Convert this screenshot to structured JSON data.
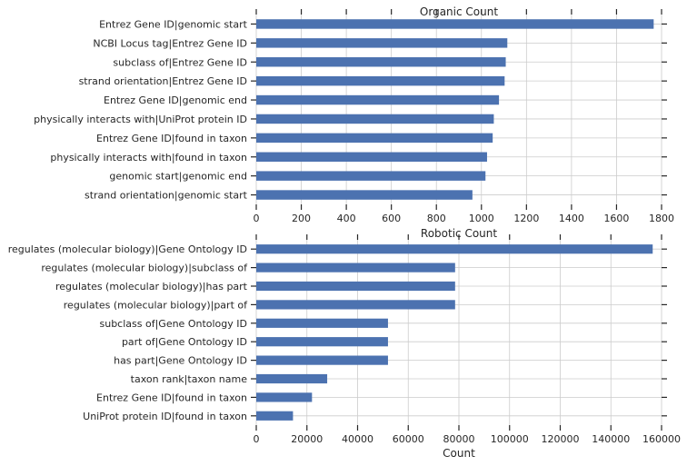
{
  "chart_data": [
    {
      "type": "bar",
      "orientation": "horizontal",
      "title": "Organic Count",
      "xlabel": "",
      "ylabel": "",
      "xlim": [
        0,
        1800
      ],
      "xticks": [
        0,
        200,
        400,
        600,
        800,
        1000,
        1200,
        1400,
        1600,
        1800
      ],
      "grid": true,
      "color": "#4c72b0",
      "categories": [
        "Entrez Gene ID|genomic start",
        "NCBI Locus tag|Entrez Gene ID",
        "subclass of|Entrez Gene ID",
        "strand orientation|Entrez Gene ID",
        "Entrez Gene ID|genomic end",
        "physically interacts with|UniProt protein ID",
        "Entrez Gene ID|found in taxon",
        "physically interacts with|found in taxon",
        "genomic start|genomic end",
        "strand orientation|genomic start"
      ],
      "values": [
        1765,
        1115,
        1108,
        1103,
        1078,
        1055,
        1050,
        1025,
        1018,
        960
      ]
    },
    {
      "type": "bar",
      "orientation": "horizontal",
      "title": "Robotic Count",
      "xlabel": "Count",
      "ylabel": "",
      "xlim": [
        0,
        160000
      ],
      "xticks": [
        0,
        20000,
        40000,
        60000,
        80000,
        100000,
        120000,
        140000,
        160000
      ],
      "grid": true,
      "color": "#4c72b0",
      "categories": [
        "regulates (molecular biology)|Gene Ontology ID",
        "regulates (molecular biology)|subclass of",
        "regulates (molecular biology)|has part",
        "regulates (molecular biology)|part of",
        "subclass of|Gene Ontology ID",
        "part of|Gene Ontology ID",
        "has part|Gene Ontology ID",
        "taxon rank|taxon name",
        "Entrez Gene ID|found in taxon",
        "UniProt protein ID|found in taxon"
      ],
      "values": [
        156500,
        78500,
        78500,
        78500,
        52000,
        52000,
        52000,
        28000,
        22000,
        14500
      ]
    }
  ]
}
